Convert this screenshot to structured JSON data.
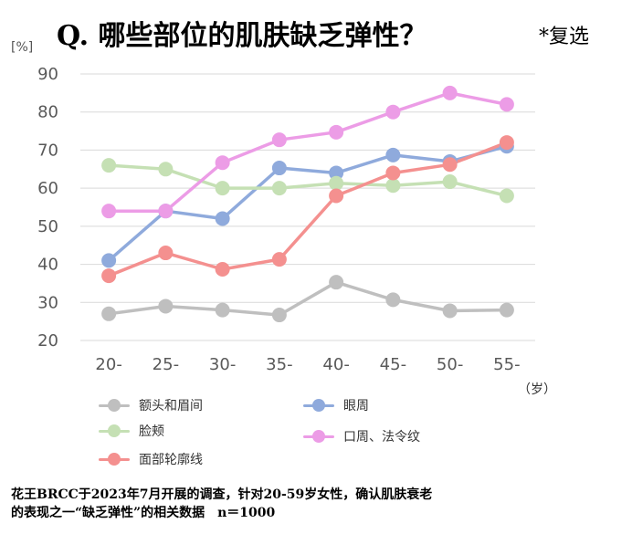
{
  "title": "Q. 哪些部位的肌肤缺乏弹性？",
  "multi_select": "*复选",
  "note_line1": "花王BRCC于2023年7月开展的调查，针对20-59岁女性，确认肌肤衰老",
  "note_line2": "的表现之一“缺乏弹性”的相关数据　n＝1000",
  "chart_data": {
    "type": "line",
    "ylabel": "[%]",
    "xunit": "（岁）",
    "categories": [
      "20-",
      "25-",
      "30-",
      "35-",
      "40-",
      "45-",
      "50-",
      "55-"
    ],
    "ylim": [
      20,
      90
    ],
    "yticks": [
      20,
      30,
      40,
      50,
      60,
      70,
      80,
      90
    ],
    "grid": true,
    "series": [
      {
        "name": "额头和眉间",
        "color": "#bfbfbf",
        "values": [
          27,
          29,
          28,
          26.7,
          35.3,
          30.7,
          27.8,
          28
        ]
      },
      {
        "name": "眼周",
        "color": "#8faadc",
        "values": [
          41,
          54,
          52,
          65.3,
          64,
          68.7,
          67,
          71
        ]
      },
      {
        "name": "脸颊",
        "color": "#c5e0b4",
        "values": [
          66,
          65,
          60,
          60,
          61.3,
          60.7,
          61.7,
          58
        ]
      },
      {
        "name": "口周、法令纹",
        "color": "#ec9ce6",
        "values": [
          54,
          54,
          66.7,
          72.7,
          74.7,
          80,
          85,
          82
        ]
      },
      {
        "name": "面部轮廓线",
        "color": "#f4908f",
        "values": [
          37,
          43,
          38.7,
          41.3,
          58,
          64,
          66.2,
          72
        ]
      }
    ]
  }
}
